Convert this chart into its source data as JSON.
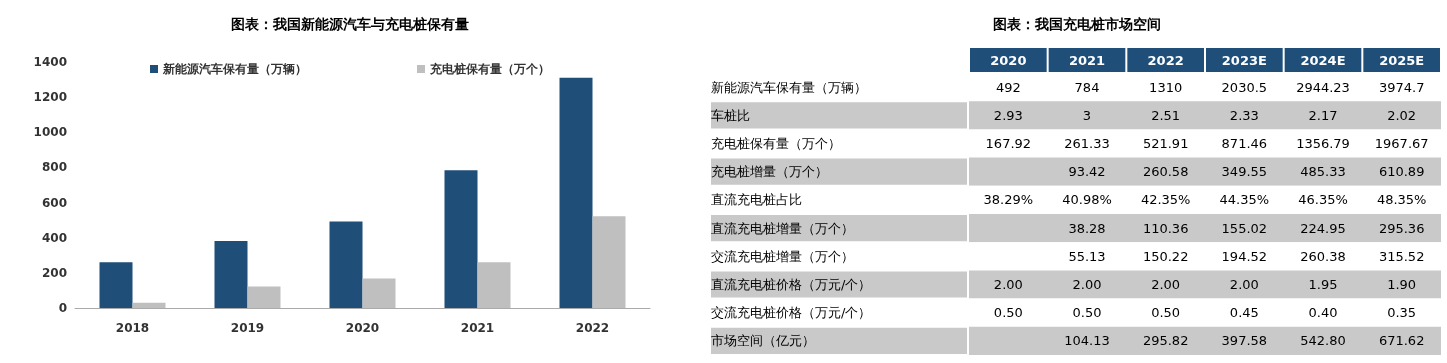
{
  "chart_data": [
    {
      "type": "bar",
      "title": "图表：我国新能源汽车与充电桩保有量",
      "categories": [
        "2018",
        "2019",
        "2020",
        "2021",
        "2022"
      ],
      "series": [
        {
          "name": "新能源汽车保有量（万辆）",
          "color": "#1f4e79",
          "values": [
            261,
            381,
            492,
            784,
            1310
          ]
        },
        {
          "name": "充电桩保有量（万个）",
          "color": "#bfbfbf",
          "values": [
            30,
            122,
            168,
            261,
            522
          ]
        }
      ],
      "ylim": [
        0,
        1400
      ],
      "yticks": [
        0,
        200,
        400,
        600,
        800,
        1000,
        1200,
        1400
      ],
      "grid": false,
      "legend": "top"
    },
    {
      "type": "heatmap",
      "title": "图表：我国充电桩市场空间",
      "categories": [
        "2020",
        "2021",
        "2022",
        "2023E",
        "2024E",
        "2025E"
      ],
      "y_categories": [
        "新能源汽车保有量（万辆）",
        "车桩比",
        "充电桩保有量（万个）",
        "充电桩增量（万个）",
        "直流充电桩占比",
        "直流充电桩增量（万个）",
        "交流充电桩增量（万个）",
        "直流充电桩价格（万元/个）",
        "交流充电桩价格（万元/个）",
        "市场空间（亿元）"
      ],
      "cells": [
        [
          492,
          784,
          1310,
          2030.5,
          2944.23,
          3974.7
        ],
        [
          2.93,
          3,
          2.51,
          2.33,
          2.17,
          2.02
        ],
        [
          167.92,
          261.33,
          521.91,
          871.46,
          1356.79,
          1967.67
        ],
        [
          null,
          93.42,
          260.58,
          349.55,
          485.33,
          610.89
        ],
        [
          38.29,
          40.98,
          42.35,
          44.35,
          46.35,
          48.35
        ],
        [
          null,
          38.28,
          110.36,
          155.02,
          224.95,
          295.36
        ],
        [
          null,
          55.13,
          150.22,
          194.52,
          260.38,
          315.52
        ],
        [
          2,
          2,
          2,
          2,
          1.95,
          1.9
        ],
        [
          0.5,
          0.5,
          0.5,
          0.45,
          0.4,
          0.35
        ],
        [
          null,
          104.13,
          295.82,
          397.58,
          542.8,
          671.62
        ]
      ],
      "cell_labels": [
        [
          "492",
          "784",
          "1310",
          "2030.5",
          "2944.23",
          "3974.7"
        ],
        [
          "2.93",
          "3",
          "2.51",
          "2.33",
          "2.17",
          "2.02"
        ],
        [
          "167.92",
          "261.33",
          "521.91",
          "871.46",
          "1356.79",
          "1967.67"
        ],
        [
          null,
          "93.42",
          "260.58",
          "349.55",
          "485.33",
          "610.89"
        ],
        [
          "38.29%",
          "40.98%",
          "42.35%",
          "44.35%",
          "46.35%",
          "48.35%"
        ],
        [
          null,
          "38.28",
          "110.36",
          "155.02",
          "224.95",
          "295.36"
        ],
        [
          null,
          "55.13",
          "150.22",
          "194.52",
          "260.38",
          "315.52"
        ],
        [
          "2.00",
          "2.00",
          "2.00",
          "2.00",
          "1.95",
          "1.90"
        ],
        [
          "0.50",
          "0.50",
          "0.50",
          "0.45",
          "0.40",
          "0.35"
        ],
        [
          null,
          "104.13",
          "295.82",
          "397.58",
          "542.80",
          "671.62"
        ]
      ]
    }
  ]
}
